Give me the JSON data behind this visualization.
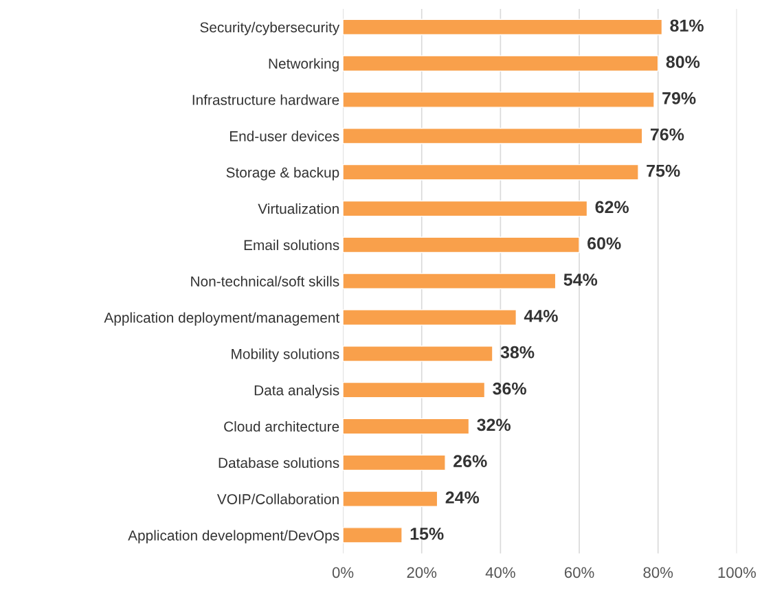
{
  "chart_data": {
    "type": "bar",
    "orientation": "horizontal",
    "color": "#f9a04b",
    "categories": [
      "Security/cybersecurity",
      "Networking",
      "Infrastructure hardware",
      "End-user devices",
      "Storage & backup",
      "Virtualization",
      "Email solutions",
      "Non-technical/soft skills",
      "Application deployment/management",
      "Mobility solutions",
      "Data analysis",
      "Cloud architecture",
      "Database solutions",
      "VOIP/Collaboration",
      "Application development/DevOps"
    ],
    "values": [
      81,
      80,
      79,
      76,
      75,
      62,
      60,
      54,
      44,
      38,
      36,
      32,
      26,
      24,
      15
    ],
    "value_labels": [
      "81%",
      "80%",
      "79%",
      "76%",
      "75%",
      "62%",
      "60%",
      "54%",
      "44%",
      "38%",
      "36%",
      "32%",
      "26%",
      "24%",
      "15%"
    ],
    "xlim": [
      0,
      100
    ],
    "xticks": [
      {
        "value": 0,
        "label": "0%"
      },
      {
        "value": 20,
        "label": "20%"
      },
      {
        "value": 40,
        "label": "40%"
      },
      {
        "value": 60,
        "label": "60%"
      },
      {
        "value": 80,
        "label": "80%"
      },
      {
        "value": 100,
        "label": "100%"
      }
    ],
    "grid": "x",
    "legend": false
  }
}
